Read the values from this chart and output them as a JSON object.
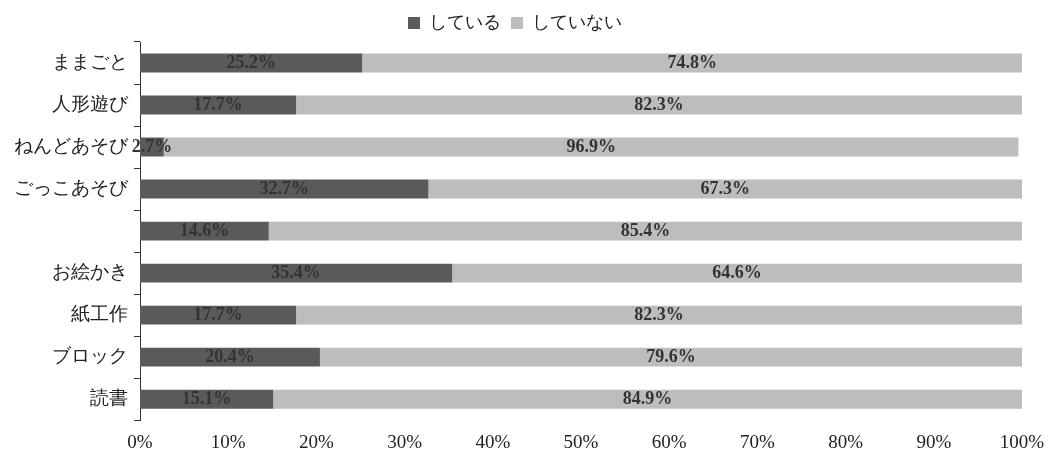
{
  "chart_data": {
    "type": "bar",
    "orientation": "horizontal",
    "stacked": true,
    "categories": [
      "ままごと",
      "人形遊び",
      "ねんどあそび",
      "ごっこあそび",
      null,
      "お絵かき",
      "紙工作",
      "ブロック",
      "読書"
    ],
    "series": [
      {
        "name": "している",
        "color": "#5a5a5a",
        "values": [
          25.2,
          17.7,
          2.7,
          32.7,
          14.6,
          35.4,
          17.7,
          20.4,
          15.1
        ],
        "value_labels": [
          "25.2%",
          "17.7%",
          "2.7%",
          "32.7%",
          "14.6%",
          "35.4%",
          "17.7%",
          "20.4%",
          "15.1%"
        ]
      },
      {
        "name": "していない",
        "color": "#bdbdbd",
        "values": [
          74.8,
          82.3,
          96.9,
          67.3,
          85.4,
          64.6,
          82.3,
          79.6,
          84.9
        ],
        "value_labels": [
          "74.8%",
          "82.3%",
          "96.9%",
          "67.3%",
          "85.4%",
          "64.6%",
          "82.3%",
          "79.6%",
          "84.9%"
        ]
      }
    ],
    "xlim": [
      0,
      100
    ],
    "xticks": [
      {
        "value": 0,
        "label": "0%"
      },
      {
        "value": 10,
        "label": "10%"
      },
      {
        "value": 20,
        "label": "20%"
      },
      {
        "value": 30,
        "label": "30%"
      },
      {
        "value": 40,
        "label": "40%"
      },
      {
        "value": 50,
        "label": "50%"
      },
      {
        "value": 60,
        "label": "60%"
      },
      {
        "value": 70,
        "label": "70%"
      },
      {
        "value": 80,
        "label": "80%"
      },
      {
        "value": 90,
        "label": "90%"
      },
      {
        "value": 100,
        "label": "100%"
      }
    ],
    "legend": "top",
    "grid": false
  }
}
